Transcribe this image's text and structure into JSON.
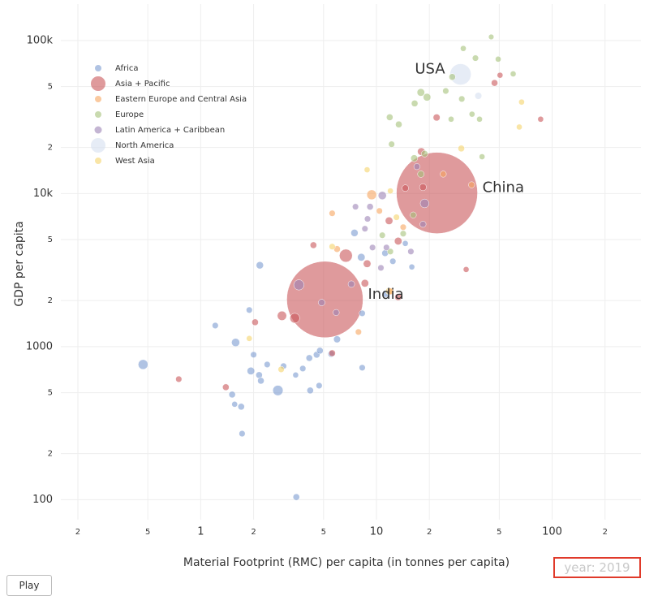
{
  "chart_data": {
    "type": "bubble",
    "xlabel": "Material Footprint (RMC) per capita (in tonnes per capita)",
    "ylabel": "GDP per capita",
    "xscale": "log",
    "yscale": "log",
    "grid": true,
    "legend": "upper left",
    "xlim": [
      0.16,
      270
    ],
    "ylim": [
      74,
      173000
    ],
    "xticks": [
      {
        "value": 0.2,
        "label": "2"
      },
      {
        "value": 0.5,
        "label": "5"
      },
      1,
      {
        "value": 2,
        "label": "2"
      },
      {
        "value": 5,
        "label": "5"
      },
      10,
      {
        "value": 20,
        "label": "2"
      },
      {
        "value": 50,
        "label": "5"
      },
      100,
      {
        "value": 200,
        "label": "2"
      }
    ],
    "yticks": [
      100,
      {
        "value": 200,
        "label": "2"
      },
      {
        "value": 500,
        "label": "5"
      },
      1000,
      {
        "value": 2000,
        "label": "2"
      },
      {
        "value": 5000,
        "label": "5"
      },
      {
        "value": 10000,
        "label": "10k"
      },
      {
        "value": 20000,
        "label": "2"
      },
      {
        "value": 50000,
        "label": "5"
      },
      {
        "value": 100000,
        "label": "100k"
      }
    ],
    "annotations": [
      {
        "text": "USA",
        "x": 30.1,
        "y": 60100
      },
      {
        "text": "China",
        "x": 22.1,
        "y": 10090
      },
      {
        "text": "India",
        "x": 5.09,
        "y": 2032
      }
    ],
    "slider_label": "year: 2019",
    "button": "Play",
    "series": [
      {
        "name": "Africa",
        "color": "#7b9bd1",
        "x": [
          0.47,
          1.21,
          1.58,
          1.89,
          1.93,
          1.51,
          1.7,
          1.56,
          1.72,
          2.15,
          2.2,
          2.39,
          2.0,
          2.75,
          2.96,
          3.47,
          3.81,
          4.15,
          4.57,
          4.77,
          4.72,
          4.2,
          3.5,
          2.17,
          8.3,
          5.97,
          5.53,
          11.3,
          8.3,
          8.2,
          7.5,
          11.2,
          15.9,
          14.6,
          12.4
        ],
        "values": [
          764,
          1373,
          1064,
          1734,
          693,
          486,
          405,
          420,
          270,
          652,
          598,
          764,
          885,
          517,
          746,
          652,
          719,
          842,
          885,
          941,
          556,
          517,
          104,
          3400,
          728,
          1116,
          896,
          2214,
          1650,
          3835,
          5530,
          4080,
          3314,
          4720,
          3610
        ],
        "sizes": [
          20,
          8,
          14,
          8,
          12,
          9,
          9,
          7,
          8,
          9,
          9,
          8,
          8,
          22,
          8,
          7,
          8,
          9,
          9,
          9,
          8,
          9,
          9,
          11,
          8,
          10,
          9,
          10,
          8,
          12,
          11,
          9,
          7,
          7,
          8
        ]
      },
      {
        "name": "Asia + Pacific",
        "color": "#c9575a",
        "x": [
          5.09,
          22.1,
          0.75,
          1.39,
          2.9,
          3.43,
          6.7,
          8.85,
          8.6,
          5.6,
          4.38,
          13.3,
          11.8,
          13.3,
          18.0,
          22,
          47,
          50.5,
          86,
          32.4,
          2.04,
          18.4,
          14.6
        ],
        "values": [
          2032,
          10090,
          613,
          543,
          1590,
          1534,
          3930,
          3480,
          2593,
          906,
          4600,
          2108,
          6640,
          4890,
          18800,
          31400,
          52800,
          59300,
          30600,
          3190,
          1443,
          11000,
          10850
        ],
        "sizes": [
          1212,
          1372,
          8,
          9,
          18,
          20,
          35,
          12,
          12,
          9,
          9,
          10,
          12,
          12,
          12,
          10,
          9,
          7,
          7,
          7,
          9,
          10,
          9
        ]
      },
      {
        "name": "Eastern Europe and Central Asia",
        "color": "#f6a55f",
        "x": [
          9.4,
          5.6,
          5.97,
          12,
          7.9,
          14.2,
          10.4,
          34.8,
          24
        ],
        "values": [
          9820,
          7430,
          4340,
          2295,
          1246,
          6030,
          7700,
          11400,
          13400
        ],
        "sizes": [
          20,
          8,
          9,
          9,
          8,
          8,
          8,
          8,
          8
        ]
      },
      {
        "name": "Europe",
        "color": "#a5c27a",
        "x": [
          17.9,
          19.4,
          16.5,
          11.9,
          13.4,
          27,
          31.2,
          36.6,
          45,
          49.3,
          60,
          24.8,
          30.6,
          38.6,
          35,
          26.6,
          39.9,
          16.4,
          17.9,
          12.2,
          18.8,
          16.2,
          10.8,
          12,
          14.2
        ],
        "values": [
          45800,
          42600,
          38800,
          31500,
          28300,
          57800,
          88700,
          76700,
          105500,
          75500,
          60500,
          46800,
          41500,
          30600,
          33000,
          30600,
          17400,
          17000,
          13400,
          21000,
          18200,
          7240,
          5340,
          4180,
          5470
        ],
        "sizes": [
          12,
          12,
          9,
          9,
          9,
          9,
          7,
          8,
          6,
          7,
          7,
          8,
          8,
          7,
          7,
          7,
          7,
          10,
          9,
          8,
          9,
          8,
          8,
          8,
          8
        ]
      },
      {
        "name": "Latin America + Caribbean",
        "color": "#9c84b5",
        "x": [
          3.62,
          10.8,
          18.8,
          4.88,
          9.2,
          8.9,
          7.6,
          9.5,
          11.4,
          10.6,
          15.7,
          17,
          7.2,
          5.9,
          18.4,
          8.6
        ],
        "values": [
          2530,
          9710,
          8620,
          1940,
          8200,
          6830,
          8200,
          4440,
          4440,
          3270,
          4180,
          15000,
          2560,
          1670,
          6300,
          5890
        ],
        "sizes": [
          22,
          14,
          16,
          9,
          9,
          8,
          8,
          8,
          8,
          8,
          8,
          8,
          9,
          8,
          8,
          8
        ]
      },
      {
        "name": "North America",
        "color": "#d5e0f0",
        "x": [
          30.1,
          38
        ],
        "values": [
          60100,
          43500
        ],
        "sizes": [
          93,
          10
        ]
      },
      {
        "name": "West Asia",
        "color": "#f5d36a",
        "x": [
          67,
          65,
          30.4,
          8.85,
          5.6,
          12,
          13,
          1.89,
          11.8,
          2.87
        ],
        "values": [
          39600,
          27200,
          19700,
          14300,
          4500,
          10400,
          7000,
          1130,
          2300,
          710
        ],
        "sizes": [
          7,
          7,
          9,
          7,
          8,
          7,
          8,
          7,
          10,
          8
        ]
      }
    ]
  }
}
